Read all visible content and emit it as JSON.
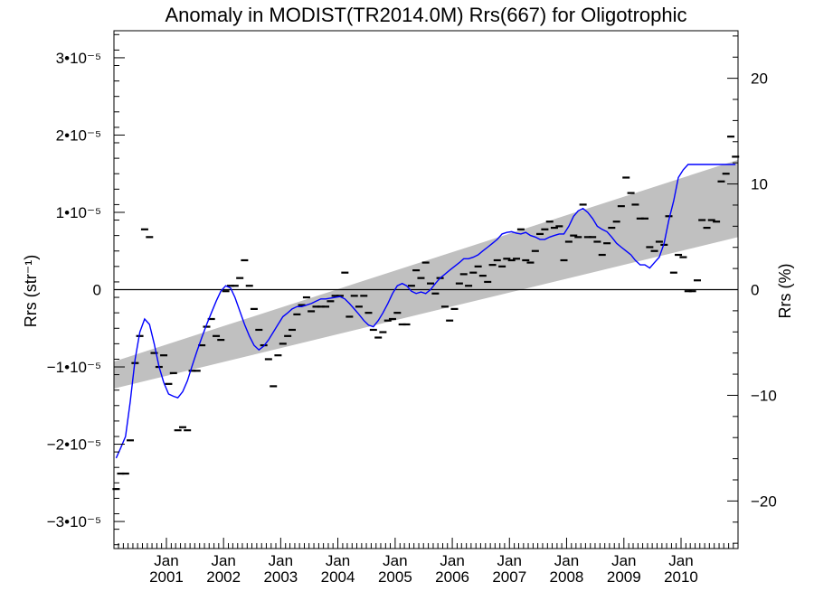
{
  "chart_data": {
    "type": "line",
    "title": "Anomaly in MODIST(TR2014.0M) Rrs(667) for Oligotrophic",
    "ylabel_left": "Rrs (str⁻¹)",
    "ylabel_right": "Rrs (%)",
    "x_range": [
      "2000-02-01",
      "2010-12-31"
    ],
    "ylim_left": [
      -3.35e-05,
      3.35e-05
    ],
    "ylim_right": [
      -24.5,
      24.5
    ],
    "left_ticks": [
      {
        "value": -3e-05,
        "label": "−3•10⁻⁵"
      },
      {
        "value": -2e-05,
        "label": "−2•10⁻⁵"
      },
      {
        "value": -1e-05,
        "label": "−1•10⁻⁵"
      },
      {
        "value": 0,
        "label": "0"
      },
      {
        "value": 1e-05,
        "label": "1•10⁻⁵"
      },
      {
        "value": 2e-05,
        "label": "2•10⁻⁵"
      },
      {
        "value": 3e-05,
        "label": "3•10⁻⁵"
      }
    ],
    "right_ticks": [
      {
        "value": -20,
        "label": "−20"
      },
      {
        "value": -10,
        "label": "−10"
      },
      {
        "value": 0,
        "label": "0"
      },
      {
        "value": 10,
        "label": "10"
      },
      {
        "value": 20,
        "label": "20"
      }
    ],
    "x_ticks": [
      {
        "date": "2001-01-01",
        "month": "Jan",
        "year": "2001"
      },
      {
        "date": "2002-01-01",
        "month": "Jan",
        "year": "2002"
      },
      {
        "date": "2003-01-01",
        "month": "Jan",
        "year": "2003"
      },
      {
        "date": "2004-01-01",
        "month": "Jan",
        "year": "2004"
      },
      {
        "date": "2005-01-01",
        "month": "Jan",
        "year": "2005"
      },
      {
        "date": "2006-01-01",
        "month": "Jan",
        "year": "2006"
      },
      {
        "date": "2007-01-01",
        "month": "Jan",
        "year": "2007"
      },
      {
        "date": "2008-01-01",
        "month": "Jan",
        "year": "2008"
      },
      {
        "date": "2009-01-01",
        "month": "Jan",
        "year": "2009"
      },
      {
        "date": "2010-01-01",
        "month": "Jan",
        "year": "2010"
      }
    ],
    "trend_band": {
      "x": [
        "2000-02-01",
        "2010-12-31"
      ],
      "upper": [
        -9.3e-06,
        1.68e-05
      ],
      "lower": [
        -1.28e-05,
        6.8e-06
      ],
      "color": "#c0c0c0"
    },
    "zero_line": 0,
    "monthly_anomaly": {
      "marker": "dash",
      "color": "#000000",
      "x": [
        "2000-02",
        "2000-03",
        "2000-04",
        "2000-05",
        "2000-06",
        "2000-07",
        "2000-08",
        "2000-09",
        "2000-10",
        "2000-11",
        "2000-12",
        "2001-01",
        "2001-02",
        "2001-03",
        "2001-04",
        "2001-05",
        "2001-06",
        "2001-07",
        "2001-08",
        "2001-09",
        "2001-10",
        "2001-11",
        "2001-12",
        "2002-01",
        "2002-02",
        "2002-03",
        "2002-04",
        "2002-05",
        "2002-06",
        "2002-07",
        "2002-08",
        "2002-09",
        "2002-10",
        "2002-11",
        "2002-12",
        "2003-01",
        "2003-02",
        "2003-03",
        "2003-04",
        "2003-05",
        "2003-06",
        "2003-07",
        "2003-08",
        "2003-09",
        "2003-10",
        "2003-11",
        "2003-12",
        "2004-01",
        "2004-02",
        "2004-03",
        "2004-04",
        "2004-05",
        "2004-06",
        "2004-07",
        "2004-08",
        "2004-09",
        "2004-10",
        "2004-11",
        "2004-12",
        "2005-01",
        "2005-02",
        "2005-03",
        "2005-04",
        "2005-05",
        "2005-06",
        "2005-07",
        "2005-08",
        "2005-09",
        "2005-10",
        "2005-11",
        "2005-12",
        "2006-01",
        "2006-02",
        "2006-03",
        "2006-04",
        "2006-05",
        "2006-06",
        "2006-07",
        "2006-08",
        "2006-09",
        "2006-10",
        "2006-11",
        "2006-12",
        "2007-01",
        "2007-02",
        "2007-03",
        "2007-04",
        "2007-05",
        "2007-06",
        "2007-07",
        "2007-08",
        "2007-09",
        "2007-10",
        "2007-11",
        "2007-12",
        "2008-01",
        "2008-02",
        "2008-03",
        "2008-04",
        "2008-05",
        "2008-06",
        "2008-07",
        "2008-08",
        "2008-09",
        "2008-10",
        "2008-11",
        "2008-12",
        "2009-01",
        "2009-02",
        "2009-03",
        "2009-04",
        "2009-05",
        "2009-06",
        "2009-07",
        "2009-08",
        "2009-09",
        "2009-10",
        "2009-11",
        "2009-12",
        "2010-01",
        "2010-02",
        "2010-03",
        "2010-04",
        "2010-05",
        "2010-06",
        "2010-07",
        "2010-08",
        "2010-09",
        "2010-10",
        "2010-11",
        "2010-12"
      ],
      "values": [
        -2.58e-05,
        -2.38e-05,
        -2.38e-05,
        -1.95e-05,
        -9.5e-06,
        -6e-06,
        7.8e-06,
        6.8e-06,
        -8.2e-06,
        -1e-05,
        -8.5e-06,
        -1.22e-05,
        -1.08e-05,
        -1.82e-05,
        -1.78e-05,
        -1.82e-05,
        -1.05e-05,
        -1.05e-05,
        -7.2e-06,
        -4.8e-06,
        -3.8e-06,
        -6e-06,
        -6.5e-06,
        -2e-07,
        5e-07,
        5e-07,
        1.5e-06,
        3.8e-06,
        5e-07,
        -2.5e-06,
        -5.2e-06,
        -7.2e-06,
        -9e-06,
        -1.25e-05,
        -8.5e-06,
        -7e-06,
        -6e-06,
        -5.2e-06,
        -3.2e-06,
        -2e-06,
        -1e-06,
        -2.8e-06,
        -2.2e-06,
        -2.2e-06,
        -2.2e-06,
        -1.5e-06,
        -8e-07,
        -8e-07,
        2.2e-06,
        -3.5e-06,
        -8e-07,
        -2.2e-06,
        -8e-07,
        -3e-06,
        -5.2e-06,
        -6.2e-06,
        -5.5e-06,
        -4e-06,
        -3.8e-06,
        -3e-06,
        -4.5e-06,
        -4.5e-06,
        5e-07,
        2.5e-06,
        1.5e-06,
        3.5e-06,
        8e-07,
        -5e-07,
        1.5e-06,
        -2.2e-06,
        -4e-06,
        -2.5e-06,
        8e-07,
        2e-06,
        5e-07,
        2.2e-06,
        3e-06,
        1.8e-06,
        1e-06,
        3.2e-06,
        3.8e-06,
        3e-06,
        4e-06,
        3.8e-06,
        4e-06,
        7.8e-06,
        3.8e-06,
        3.5e-06,
        5e-06,
        7.2e-06,
        7.8e-06,
        8.8e-06,
        8e-06,
        8.2e-06,
        3.8e-06,
        6.2e-06,
        7e-06,
        6.8e-06,
        1.1e-05,
        6.8e-06,
        6.8e-06,
        6.2e-06,
        4.5e-06,
        6e-06,
        8e-06,
        8.8e-06,
        1.08e-05,
        1.45e-05,
        1.25e-05,
        1.1e-05,
        9.2e-06,
        9.2e-06,
        5.5e-06,
        5e-06,
        6.2e-06,
        5.8e-06,
        9.5e-06,
        2.2e-06,
        4.5e-06,
        4.2e-06,
        -2e-07,
        -2e-07,
        1.2e-06,
        9e-06,
        8e-06,
        9e-06,
        8.8e-06,
        1.4e-05,
        1.5e-05,
        1.98e-05,
        1.72e-05
      ]
    },
    "running_mean": {
      "color": "#0000ff",
      "x": [
        "2000-02",
        "2000-03",
        "2000-04",
        "2000-05",
        "2000-06",
        "2000-07",
        "2000-08",
        "2000-09",
        "2000-10",
        "2000-11",
        "2000-12",
        "2001-01",
        "2001-02",
        "2001-03",
        "2001-04",
        "2001-05",
        "2001-06",
        "2001-07",
        "2001-08",
        "2001-09",
        "2001-10",
        "2001-11",
        "2001-12",
        "2002-01",
        "2002-02",
        "2002-03",
        "2002-04",
        "2002-05",
        "2002-06",
        "2002-07",
        "2002-08",
        "2002-09",
        "2002-10",
        "2002-11",
        "2002-12",
        "2003-01",
        "2003-02",
        "2003-03",
        "2003-04",
        "2003-05",
        "2003-06",
        "2003-07",
        "2003-08",
        "2003-09",
        "2003-10",
        "2003-11",
        "2003-12",
        "2004-01",
        "2004-02",
        "2004-03",
        "2004-04",
        "2004-05",
        "2004-06",
        "2004-07",
        "2004-08",
        "2004-09",
        "2004-10",
        "2004-11",
        "2004-12",
        "2005-01",
        "2005-02",
        "2005-03",
        "2005-04",
        "2005-05",
        "2005-06",
        "2005-07",
        "2005-08",
        "2005-09",
        "2005-10",
        "2005-11",
        "2005-12",
        "2006-01",
        "2006-02",
        "2006-03",
        "2006-04",
        "2006-05",
        "2006-06",
        "2006-07",
        "2006-08",
        "2006-09",
        "2006-10",
        "2006-11",
        "2006-12",
        "2007-01",
        "2007-02",
        "2007-03",
        "2007-04",
        "2007-05",
        "2007-06",
        "2007-07",
        "2007-08",
        "2007-09",
        "2007-10",
        "2007-11",
        "2007-12",
        "2008-01",
        "2008-02",
        "2008-03",
        "2008-04",
        "2008-05",
        "2008-06",
        "2008-07",
        "2008-08",
        "2008-09",
        "2008-10",
        "2008-11",
        "2008-12",
        "2009-01",
        "2009-02",
        "2009-03",
        "2009-04",
        "2009-05",
        "2009-06",
        "2009-07",
        "2009-08",
        "2009-09",
        "2009-10",
        "2009-11",
        "2009-12",
        "2010-01",
        "2010-02",
        "2010-03",
        "2010-04",
        "2010-05",
        "2010-06",
        "2010-07",
        "2010-08",
        "2010-09",
        "2010-10",
        "2010-11",
        "2010-12"
      ],
      "values": [
        -2.18e-05,
        -2.05e-05,
        -1.9e-05,
        -1.45e-05,
        -9e-06,
        -5.5e-06,
        -3.8e-06,
        -4.5e-06,
        -7e-06,
        -1e-05,
        -1.2e-05,
        -1.35e-05,
        -1.38e-05,
        -1.4e-05,
        -1.32e-05,
        -1.18e-05,
        -9.8e-06,
        -8e-06,
        -6.2e-06,
        -4.5e-06,
        -3e-06,
        -1.5e-06,
        -2e-07,
        5e-07,
        2e-07,
        -1e-06,
        -2.8e-06,
        -4.5e-06,
        -6e-06,
        -7.2e-06,
        -7.8e-06,
        -7.3e-06,
        -6.5e-06,
        -5.5e-06,
        -4.5e-06,
        -3.5e-06,
        -3e-06,
        -2.5e-06,
        -2.2e-06,
        -2.2e-06,
        -2e-06,
        -1.8e-06,
        -1.5e-06,
        -1.2e-06,
        -1.2e-06,
        -1.1e-06,
        -1e-06,
        -9e-07,
        -1.2e-06,
        -1.8e-06,
        -2.5e-06,
        -3.2e-06,
        -4e-06,
        -4.6e-06,
        -4.8e-06,
        -4e-06,
        -3e-06,
        -1.8e-06,
        -5e-07,
        5e-07,
        8e-07,
        5e-07,
        -2e-07,
        -5e-07,
        -3e-07,
        -5e-07,
        0.0,
        8e-07,
        1.5e-06,
        2e-06,
        2.5e-06,
        3e-06,
        3.5e-06,
        4e-06,
        4e-06,
        4.2e-06,
        4.5e-06,
        5e-06,
        5.5e-06,
        6e-06,
        6.5e-06,
        7.2e-06,
        7.4e-06,
        7.5e-06,
        7.3e-06,
        7.2e-06,
        7.4e-06,
        7e-06,
        6.8e-06,
        6.5e-06,
        6.5e-06,
        6.8e-06,
        7e-06,
        7.2e-06,
        7.2e-06,
        8.2e-06,
        9.5e-06,
        1.02e-05,
        1.05e-05,
        1e-05,
        9.2e-06,
        8.2e-06,
        7.8e-06,
        7.5e-06,
        6.8e-06,
        6e-06,
        5.5e-06,
        5e-06,
        4.5e-06,
        3.8e-06,
        3.2e-06,
        3.2e-06,
        2.8e-06,
        3.5e-06,
        4.2e-06,
        6e-06,
        9e-06,
        1.15e-05,
        1.45e-05,
        1.55e-05,
        1.62e-05,
        1.62e-05,
        1.62e-05,
        1.62e-05,
        1.62e-05,
        1.62e-05,
        1.62e-05,
        1.62e-05,
        1.62e-05,
        1.62e-05,
        1.62e-05
      ]
    }
  }
}
